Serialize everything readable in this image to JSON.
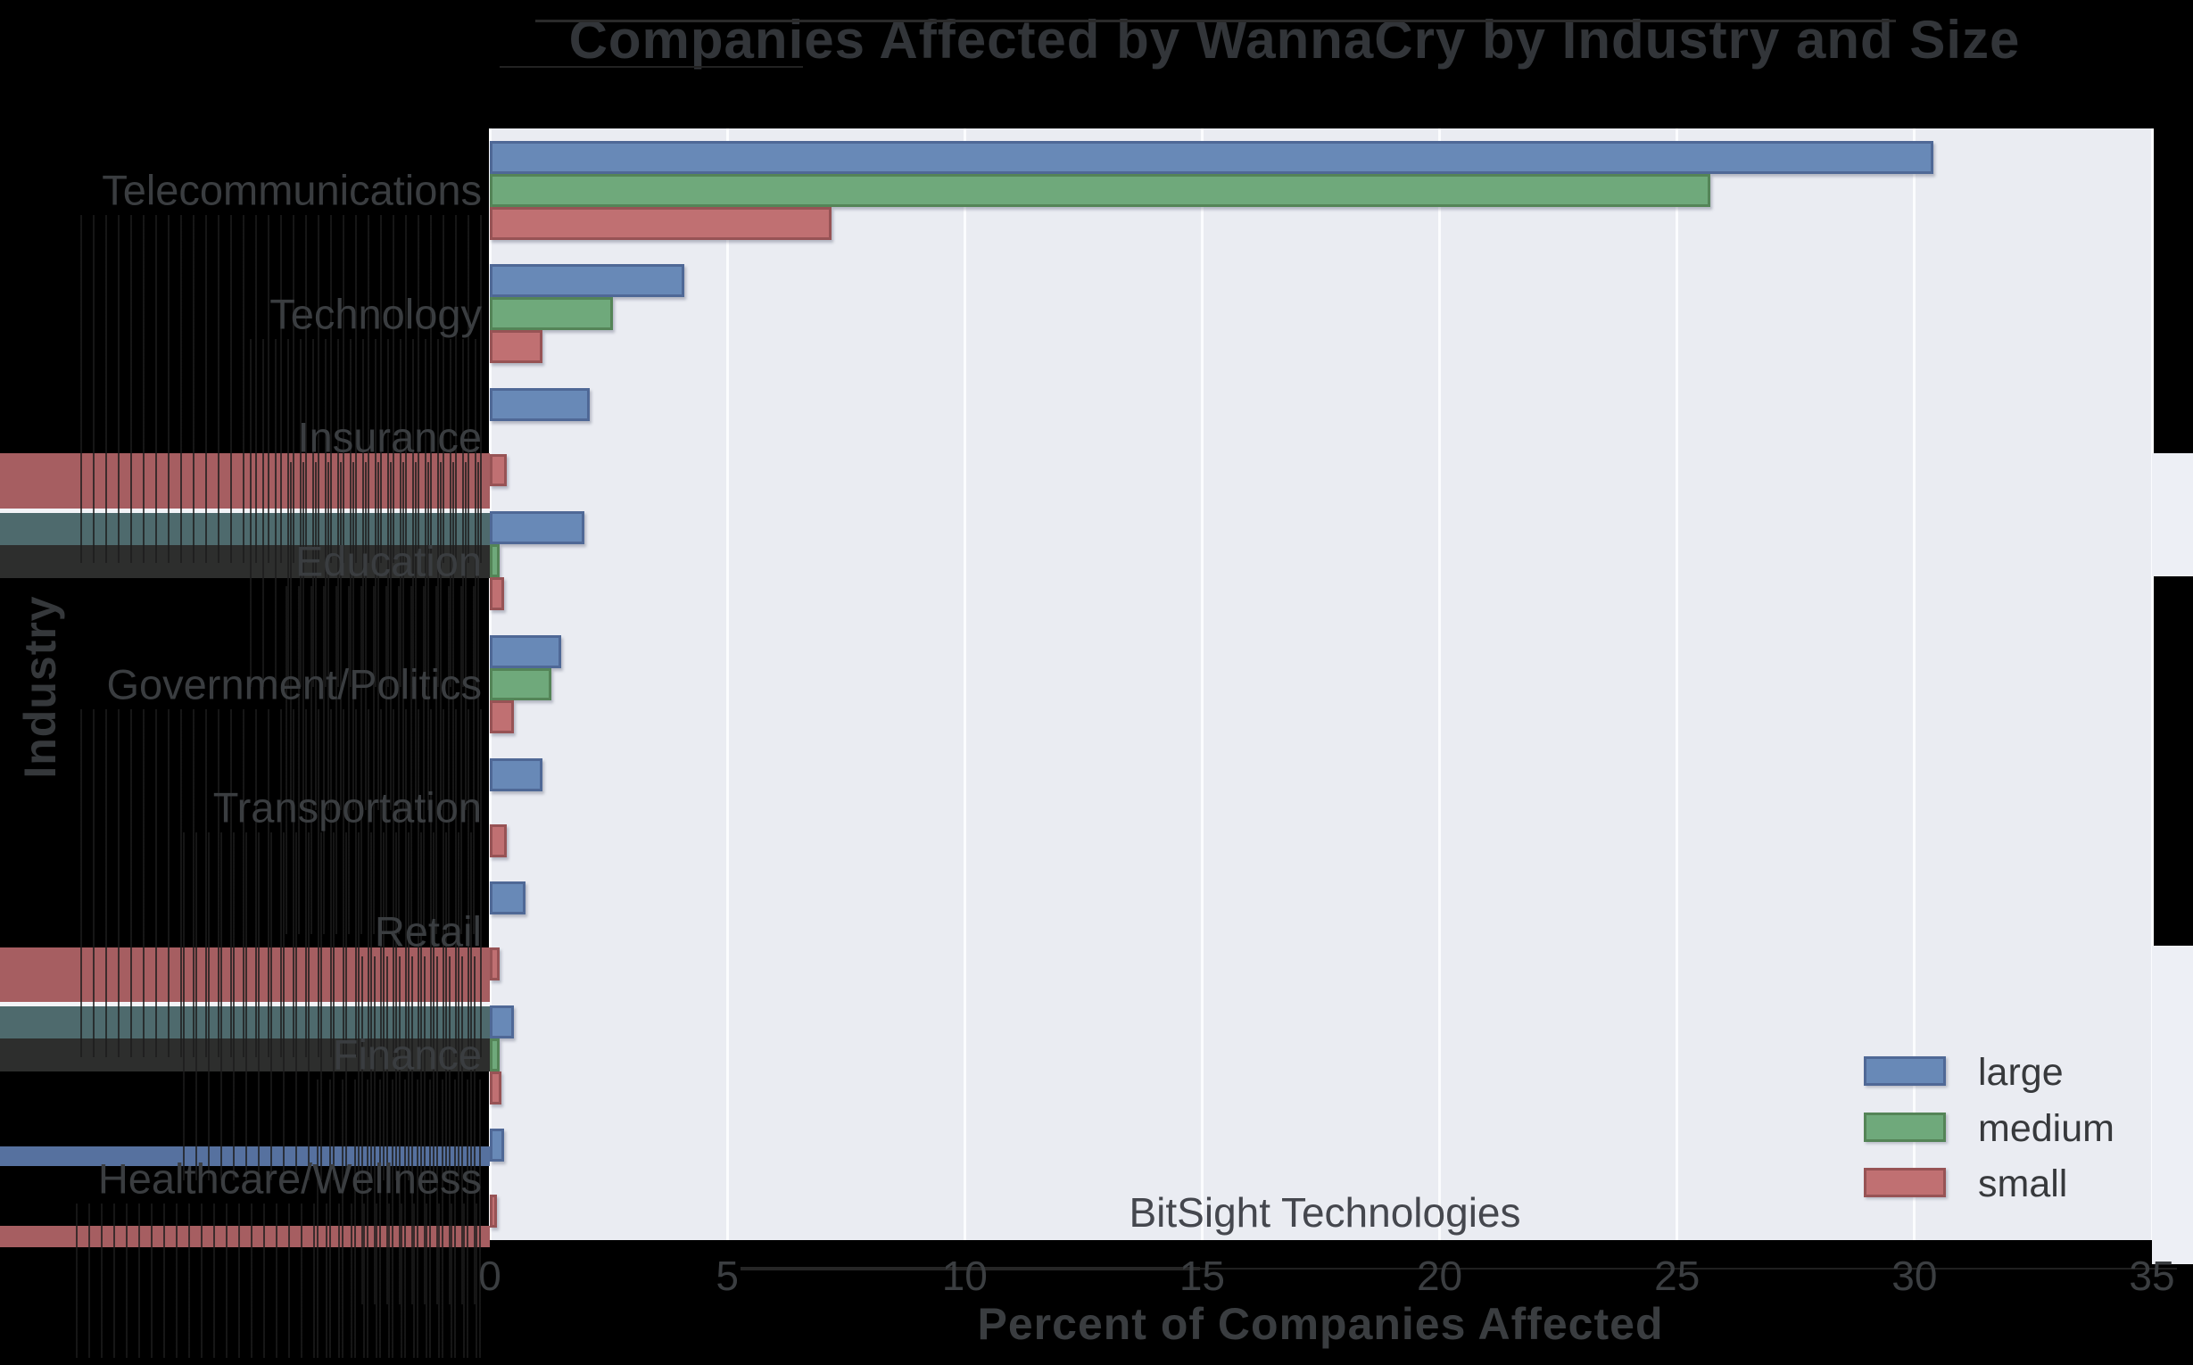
{
  "title": "Companies Affected by WannaCry by Industry and Size",
  "watermark": "BitSight Technologies",
  "x_axis": {
    "label": "Percent of Companies Affected",
    "ticks": [
      "0",
      "5",
      "10",
      "15",
      "20",
      "25",
      "30",
      "35"
    ]
  },
  "y_axis": {
    "label": "Industry"
  },
  "legend": {
    "position": "lower right",
    "items": [
      {
        "label": "large",
        "color": "#6889b7"
      },
      {
        "label": "medium",
        "color": "#6fa97b"
      },
      {
        "label": "small",
        "color": "#c07072"
      }
    ]
  },
  "colors": {
    "plot_background": "#eaecf2",
    "figure_background": "#000000",
    "gridline": "#fbfcfe",
    "text": "#3a3d40",
    "artifact_red": "#a65e61",
    "artifact_teal": "#4e6a6d",
    "artifact_dark": "#2d2e2d",
    "artifact_blue": "#56719f",
    "artifact_white": "#f2f3f7"
  },
  "chart_data": {
    "type": "bar",
    "orientation": "horizontal",
    "title": "Companies Affected by WannaCry by Industry and Size",
    "xlabel": "Percent of Companies Affected",
    "ylabel": "Industry",
    "xlim": [
      0,
      35
    ],
    "xticks": [
      0,
      5,
      10,
      15,
      20,
      25,
      30,
      35
    ],
    "grid": true,
    "legend_position": "lower right",
    "categories": [
      "Telecommunications",
      "Technology",
      "Insurance",
      "Education",
      "Government/Politics",
      "Transportation",
      "Retail",
      "Finance",
      "Healthcare/Wellness"
    ],
    "series": [
      {
        "name": "large",
        "color": "#6889b7",
        "values": [
          30.4,
          4.1,
          2.1,
          2.0,
          1.5,
          1.1,
          0.75,
          0.5,
          0.3
        ]
      },
      {
        "name": "medium",
        "color": "#6fa97b",
        "values": [
          25.7,
          2.6,
          0,
          0.2,
          1.3,
          0,
          0,
          0.2,
          0
        ]
      },
      {
        "name": "small",
        "color": "#c07072",
        "values": [
          7.2,
          1.1,
          0.35,
          0.3,
          0.5,
          0.35,
          0.2,
          0.25,
          0.15
        ]
      }
    ]
  }
}
